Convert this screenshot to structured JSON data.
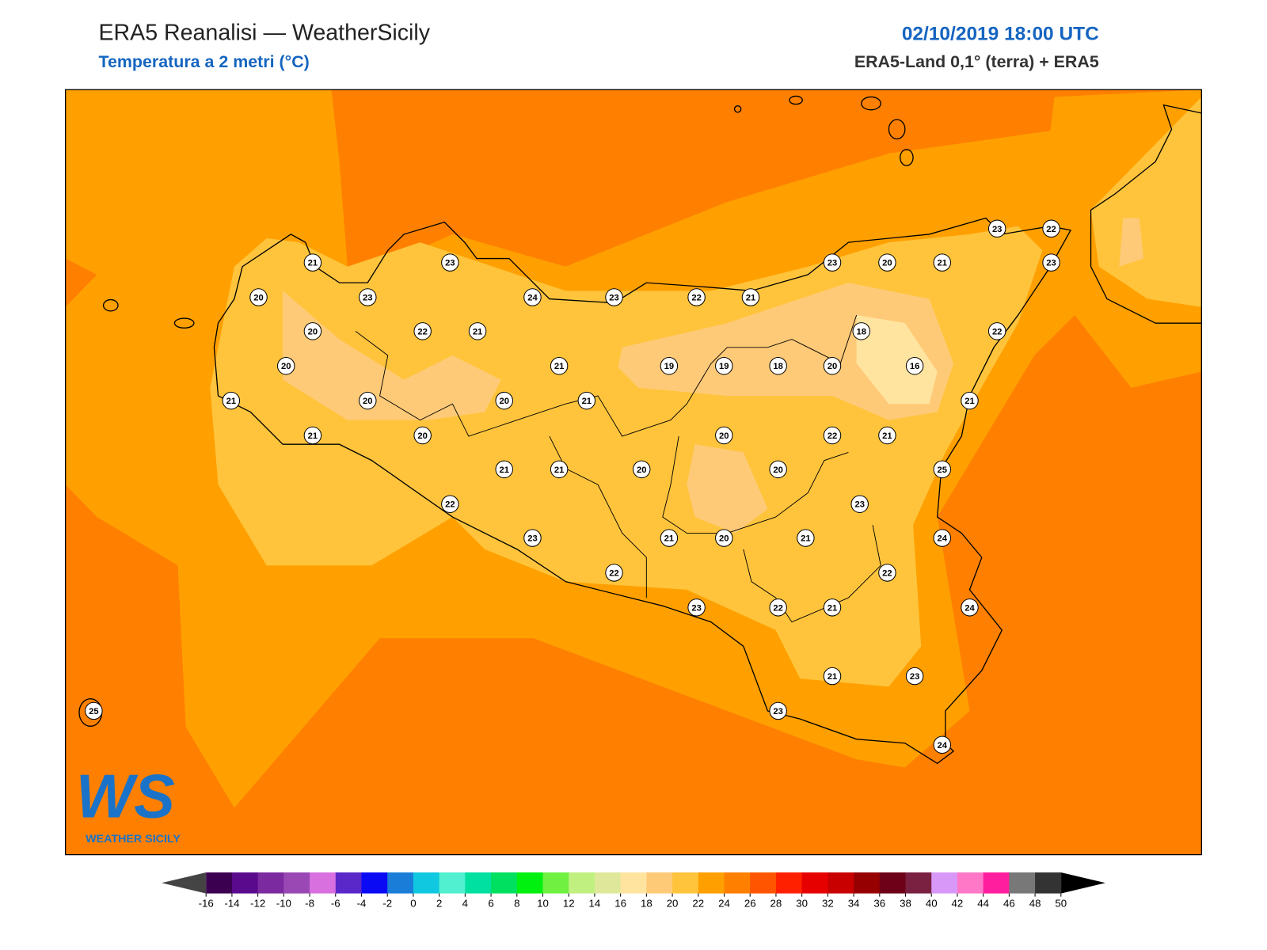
{
  "header": {
    "title": "ERA5 Reanalisi — WeatherSicily",
    "subtitle": "Temperatura a 2 metri (°C)",
    "datetime": "02/10/2019 18:00 UTC",
    "source": "ERA5-Land 0,1° (terra) + ERA5"
  },
  "stations": [
    23,
    22,
    21,
    23,
    23,
    20,
    21,
    23,
    20,
    23,
    24,
    23,
    22,
    21,
    20,
    22,
    21,
    18,
    22,
    20,
    21,
    19,
    19,
    18,
    20,
    16,
    21,
    20,
    20,
    21,
    21,
    21,
    20,
    20,
    22,
    21,
    21,
    21,
    20,
    20,
    25,
    22,
    23,
    23,
    21,
    20,
    21,
    24,
    22,
    22,
    23,
    22,
    21,
    24,
    21,
    23,
    23,
    24,
    25
  ],
  "colorbar": {
    "ticks": [
      -16,
      -14,
      -12,
      -10,
      -8,
      -6,
      -4,
      -2,
      0,
      2,
      4,
      6,
      8,
      10,
      12,
      14,
      16,
      18,
      20,
      22,
      24,
      26,
      28,
      30,
      32,
      34,
      36,
      38,
      40,
      42,
      44,
      46,
      48,
      50
    ],
    "colors": [
      "#3b0050",
      "#5a0a8c",
      "#7b2aa0",
      "#9a48b4",
      "#d870e0",
      "#5a28c8",
      "#0a0af5",
      "#1a7ed8",
      "#10c8e0",
      "#50f0d0",
      "#00e0a0",
      "#00e060",
      "#00f010",
      "#70f040",
      "#c0f080",
      "#dfe89a",
      "#ffe4a0",
      "#ffca78",
      "#ffc43c",
      "#ffa000",
      "#ff8000",
      "#ff5500",
      "#ff2000",
      "#e60000",
      "#c80000",
      "#960000",
      "#6e0018",
      "#7a2040",
      "#d898f8",
      "#ff78c8",
      "#ff1e9e",
      "#787878",
      "#333333"
    ],
    "under_color": "#444444",
    "over_color": "#000000"
  },
  "logo": {
    "initials": "WS",
    "name": "WEATHER SICILY"
  }
}
